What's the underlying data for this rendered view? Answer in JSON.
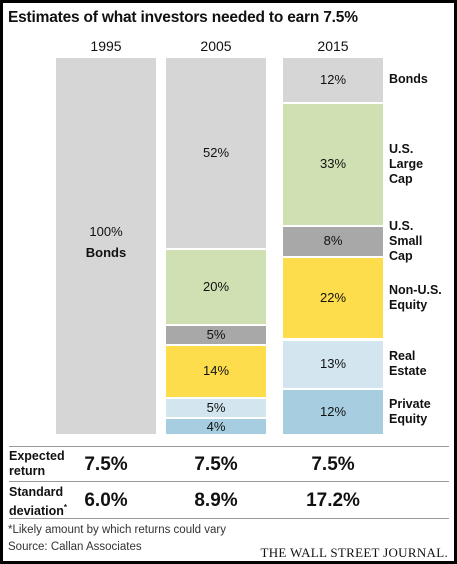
{
  "title": "Estimates of what investors needed to earn 7.5%",
  "colors": {
    "Bonds": "#d6d6d6",
    "U.S. Large Cap": "#cfe0b2",
    "U.S. Small Cap": "#a8a8a8",
    "Non-U.S. Equity": "#fddd4b",
    "Real Estate": "#d3e6ef",
    "Private Equity": "#a6cee0"
  },
  "chart_data": {
    "type": "bar",
    "stacked": true,
    "categories": [
      "1995",
      "2005",
      "2015"
    ],
    "series": [
      {
        "name": "Bonds",
        "values": [
          100,
          52,
          12
        ]
      },
      {
        "name": "U.S. Large Cap",
        "values": [
          0,
          20,
          33
        ]
      },
      {
        "name": "U.S. Small Cap",
        "values": [
          0,
          5,
          8
        ]
      },
      {
        "name": "Non-U.S. Equity",
        "values": [
          0,
          14,
          22
        ]
      },
      {
        "name": "Real Estate",
        "values": [
          0,
          5,
          13
        ]
      },
      {
        "name": "Private Equity",
        "values": [
          0,
          4,
          12
        ]
      }
    ],
    "segment_labels": [
      [
        "100%",
        "",
        "",
        "",
        "",
        ""
      ],
      [
        "52%",
        "20%",
        "5%",
        "14%",
        "5%",
        "4%"
      ],
      [
        "12%",
        "33%",
        "8%",
        "22%",
        "13%",
        "12%"
      ]
    ],
    "inline_label": {
      "text": "Bonds"
    },
    "legend_labels": [
      "Bonds",
      "U.S.\nLarge\nCap",
      "U.S.\nSmall\nCap",
      "Non-U.S.\nEquity",
      "Real\nEstate",
      "Private\nEquity"
    ],
    "legend_placement": "right",
    "ylim": [
      0,
      100
    ]
  },
  "stats": {
    "expected_return_label": "Expected\nreturn",
    "expected_return": [
      "7.5%",
      "7.5%",
      "7.5%"
    ],
    "std_dev_label": "Standard\ndeviation",
    "std_dev_marker": "*",
    "std_dev": [
      "6.0%",
      "8.9%",
      "17.2%"
    ]
  },
  "footnote": "*Likely amount by which returns could vary",
  "source": "Source: Callan Associates",
  "publisher": "THE WALL STREET JOURNAL."
}
